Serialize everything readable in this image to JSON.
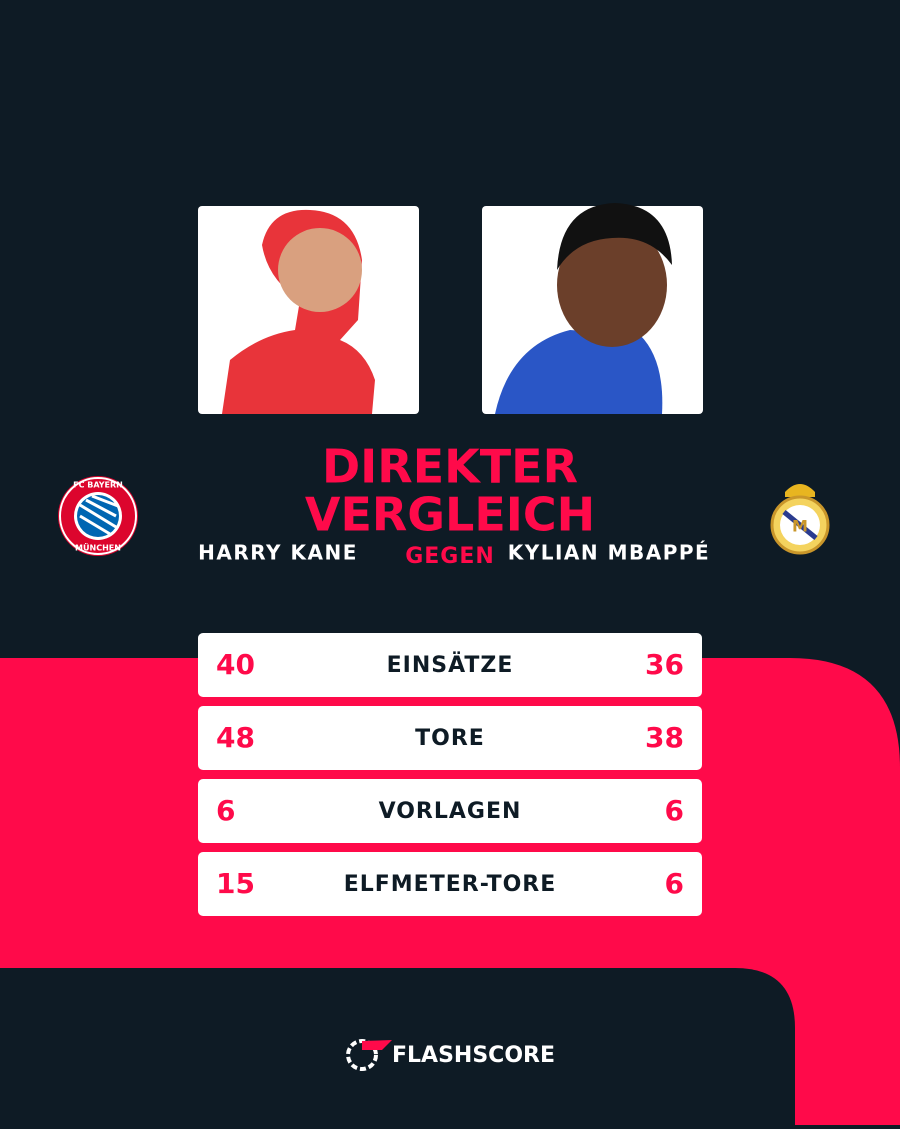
{
  "header": {
    "title_lines": [
      "DIREKTER",
      "VERGLEICH"
    ],
    "player_left": "HARRY KANE",
    "versus": "GEGEN",
    "player_right": "KYLIAN MBAPPÉ"
  },
  "logos": {
    "left_text_top": "FC BAYERN",
    "left_text_bottom": "MÜNCHEN"
  },
  "stats": [
    {
      "label": "EINSÄTZE",
      "left": "40",
      "right": "36"
    },
    {
      "label": "TORE",
      "left": "48",
      "right": "38"
    },
    {
      "label": "VORLAGEN",
      "left": "6",
      "right": "6"
    },
    {
      "label": "ELFMETER-TORE",
      "left": "15",
      "right": "6"
    }
  ],
  "footer": {
    "brand": "FLASHSCORE"
  }
}
